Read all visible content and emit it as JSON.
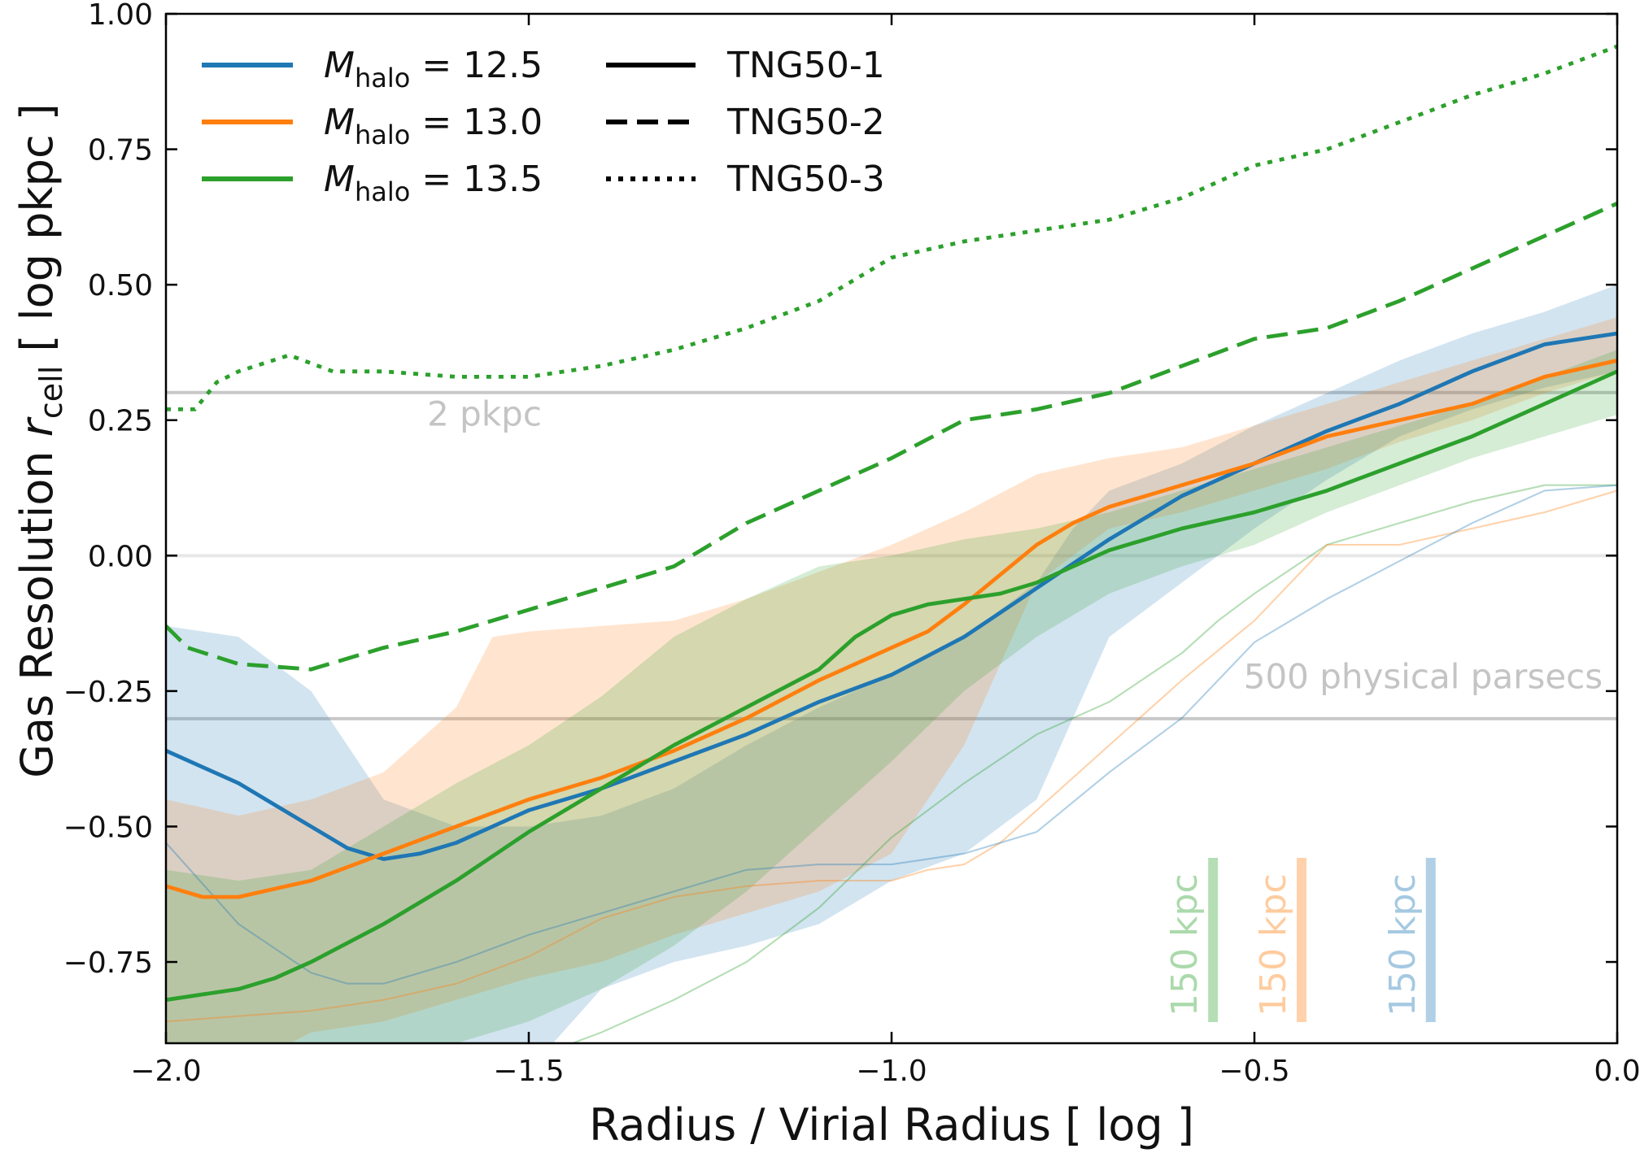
{
  "chart_data": {
    "type": "line",
    "xlabel": "Radius / Virial Radius [ log ]",
    "ylabel_parts": {
      "pre": "Gas Resolution ",
      "var": "r",
      "sub": "cell",
      "post": " [ log pkpc ]"
    },
    "xlim": [
      -2.0,
      0.0
    ],
    "ylim": [
      -0.9,
      1.0
    ],
    "xticks": [
      -2.0,
      -1.5,
      -1.0,
      -0.5,
      0.0
    ],
    "xtick_labels": [
      "−2.0",
      "−1.5",
      "−1.0",
      "−0.5",
      "0.0"
    ],
    "yticks": [
      -0.75,
      -0.5,
      -0.25,
      0.0,
      0.25,
      0.5,
      0.75,
      1.0
    ],
    "ytick_labels": [
      "−0.75",
      "−0.50",
      "−0.25",
      "0.00",
      "0.25",
      "0.50",
      "0.75",
      "1.00"
    ],
    "grid": false,
    "legend_mass": [
      {
        "var": "M",
        "sub": "halo",
        "text": " = 12.5",
        "color": "#1f77b4"
      },
      {
        "var": "M",
        "sub": "halo",
        "text": " = 13.0",
        "color": "#ff7f0e"
      },
      {
        "var": "M",
        "sub": "halo",
        "text": " = 13.5",
        "color": "#2ca02c"
      }
    ],
    "legend_style": [
      {
        "label": "TNG50-1",
        "dash": "solid"
      },
      {
        "label": "TNG50-2",
        "dash": "dashed"
      },
      {
        "label": "TNG50-3",
        "dash": "dotted"
      }
    ],
    "legend_position": "top-left",
    "reference_lines": [
      {
        "y": 0.301,
        "label": "2 pkpc",
        "label_x": -1.64,
        "label_y": 0.24,
        "anchor": "start",
        "color": "#c8c8c8"
      },
      {
        "y": 0.0,
        "label": "",
        "color": "#e8e8e8"
      },
      {
        "y": -0.301,
        "label": "500 physical parsecs",
        "label_x": -0.02,
        "label_y": -0.245,
        "anchor": "end",
        "color": "#c8c8c8"
      }
    ],
    "scale_bars": [
      {
        "label": "150 kpc",
        "x": -0.557,
        "color": "#2ca02c"
      },
      {
        "label": "150 kpc",
        "x": -0.435,
        "color": "#ff7f0e"
      },
      {
        "label": "150 kpc",
        "x": -0.257,
        "color": "#1f77b4"
      }
    ],
    "bands": [
      {
        "color": "#1f77b4",
        "opacity": 0.2,
        "x": [
          -2.0,
          -1.9,
          -1.8,
          -1.7,
          -1.6,
          -1.5,
          -1.4,
          -1.3,
          -1.2,
          -1.1,
          -1.0,
          -0.9,
          -0.8,
          -0.75,
          -0.7,
          -0.6,
          -0.5,
          -0.4,
          -0.3,
          -0.2,
          -0.1,
          0.0
        ],
        "upper": [
          -0.13,
          -0.15,
          -0.25,
          -0.45,
          -0.5,
          -0.5,
          -0.48,
          -0.43,
          -0.35,
          -0.28,
          -0.22,
          -0.15,
          -0.05,
          0.05,
          0.12,
          0.17,
          0.24,
          0.3,
          0.36,
          0.41,
          0.45,
          0.5
        ],
        "lower": [
          -0.95,
          -0.95,
          -0.95,
          -0.95,
          -0.95,
          -0.95,
          -0.8,
          -0.75,
          -0.72,
          -0.68,
          -0.6,
          -0.55,
          -0.45,
          -0.3,
          -0.15,
          -0.05,
          0.05,
          0.14,
          0.22,
          0.27,
          0.31,
          0.34
        ]
      },
      {
        "color": "#ff7f0e",
        "opacity": 0.2,
        "x": [
          -2.0,
          -1.9,
          -1.8,
          -1.7,
          -1.6,
          -1.55,
          -1.5,
          -1.4,
          -1.3,
          -1.2,
          -1.1,
          -1.0,
          -0.9,
          -0.8,
          -0.7,
          -0.6,
          -0.5,
          -0.4,
          -0.3,
          -0.2,
          -0.1,
          0.0
        ],
        "upper": [
          -0.45,
          -0.48,
          -0.45,
          -0.4,
          -0.28,
          -0.15,
          -0.14,
          -0.13,
          -0.12,
          -0.08,
          -0.03,
          0.02,
          0.08,
          0.15,
          0.18,
          0.2,
          0.24,
          0.28,
          0.32,
          0.36,
          0.4,
          0.44
        ],
        "lower": [
          -0.95,
          -0.95,
          -0.88,
          -0.86,
          -0.82,
          -0.8,
          -0.78,
          -0.75,
          -0.7,
          -0.66,
          -0.62,
          -0.55,
          -0.35,
          -0.05,
          0.05,
          0.08,
          0.12,
          0.16,
          0.21,
          0.25,
          0.3,
          0.34
        ]
      },
      {
        "color": "#2ca02c",
        "opacity": 0.2,
        "x": [
          -2.0,
          -1.9,
          -1.8,
          -1.7,
          -1.6,
          -1.5,
          -1.4,
          -1.3,
          -1.2,
          -1.1,
          -1.0,
          -0.9,
          -0.8,
          -0.7,
          -0.6,
          -0.5,
          -0.4,
          -0.3,
          -0.2,
          -0.1,
          0.0
        ],
        "upper": [
          -0.58,
          -0.6,
          -0.58,
          -0.5,
          -0.42,
          -0.35,
          -0.26,
          -0.15,
          -0.08,
          -0.02,
          0.0,
          0.03,
          0.05,
          0.08,
          0.12,
          0.16,
          0.2,
          0.24,
          0.28,
          0.33,
          0.38
        ],
        "lower": [
          -0.95,
          -0.95,
          -0.95,
          -0.93,
          -0.9,
          -0.86,
          -0.8,
          -0.72,
          -0.62,
          -0.5,
          -0.38,
          -0.25,
          -0.15,
          -0.07,
          -0.02,
          0.02,
          0.08,
          0.13,
          0.18,
          0.22,
          0.26
        ]
      }
    ],
    "series": [
      {
        "color": "#2ca02c",
        "dash": "solid",
        "width": 1.4,
        "opacity": 0.35,
        "x": [
          -1.56,
          -1.5,
          -1.4,
          -1.3,
          -1.2,
          -1.1,
          -1.0,
          -0.9,
          -0.8,
          -0.7,
          -0.6,
          -0.55,
          -0.5,
          -0.4,
          -0.3,
          -0.2,
          -0.1,
          0.0
        ],
        "y": [
          -0.95,
          -0.93,
          -0.88,
          -0.82,
          -0.75,
          -0.65,
          -0.52,
          -0.42,
          -0.33,
          -0.27,
          -0.18,
          -0.12,
          -0.07,
          0.02,
          0.06,
          0.1,
          0.13,
          0.13
        ]
      },
      {
        "color": "#ff7f0e",
        "dash": "solid",
        "width": 1.4,
        "opacity": 0.35,
        "x": [
          -2.0,
          -1.9,
          -1.8,
          -1.7,
          -1.6,
          -1.5,
          -1.4,
          -1.3,
          -1.2,
          -1.1,
          -1.0,
          -0.95,
          -0.9,
          -0.85,
          -0.8,
          -0.7,
          -0.6,
          -0.5,
          -0.45,
          -0.4,
          -0.3,
          -0.2,
          -0.1,
          0.0
        ],
        "y": [
          -0.86,
          -0.85,
          -0.84,
          -0.82,
          -0.79,
          -0.74,
          -0.67,
          -0.63,
          -0.61,
          -0.6,
          -0.6,
          -0.58,
          -0.57,
          -0.53,
          -0.47,
          -0.35,
          -0.23,
          -0.12,
          -0.05,
          0.02,
          0.02,
          0.05,
          0.08,
          0.12
        ]
      },
      {
        "color": "#1f77b4",
        "dash": "solid",
        "width": 1.4,
        "opacity": 0.35,
        "x": [
          -2.0,
          -1.9,
          -1.8,
          -1.75,
          -1.7,
          -1.6,
          -1.5,
          -1.4,
          -1.3,
          -1.2,
          -1.1,
          -1.0,
          -0.9,
          -0.8,
          -0.7,
          -0.6,
          -0.5,
          -0.4,
          -0.3,
          -0.2,
          -0.1,
          0.0
        ],
        "y": [
          -0.53,
          -0.68,
          -0.77,
          -0.79,
          -0.79,
          -0.75,
          -0.7,
          -0.66,
          -0.62,
          -0.58,
          -0.57,
          -0.57,
          -0.55,
          -0.51,
          -0.4,
          -0.3,
          -0.16,
          -0.08,
          -0.01,
          0.06,
          0.12,
          0.13
        ]
      },
      {
        "color": "#2ca02c",
        "dash": "dotted",
        "width": 3.2,
        "opacity": 1,
        "x": [
          -2.0,
          -1.96,
          -1.93,
          -1.9,
          -1.83,
          -1.77,
          -1.7,
          -1.6,
          -1.5,
          -1.4,
          -1.3,
          -1.2,
          -1.1,
          -1.0,
          -0.9,
          -0.8,
          -0.7,
          -0.6,
          -0.5,
          -0.4,
          -0.3,
          -0.2,
          -0.1,
          0.0
        ],
        "y": [
          0.27,
          0.27,
          0.32,
          0.34,
          0.37,
          0.34,
          0.34,
          0.33,
          0.33,
          0.35,
          0.38,
          0.42,
          0.47,
          0.55,
          0.58,
          0.6,
          0.62,
          0.66,
          0.72,
          0.75,
          0.8,
          0.85,
          0.89,
          0.94
        ]
      },
      {
        "color": "#2ca02c",
        "dash": "dashed",
        "width": 3.2,
        "opacity": 1,
        "x": [
          -2.0,
          -1.97,
          -1.9,
          -1.8,
          -1.7,
          -1.6,
          -1.5,
          -1.4,
          -1.3,
          -1.2,
          -1.1,
          -1.0,
          -0.9,
          -0.8,
          -0.7,
          -0.6,
          -0.5,
          -0.4,
          -0.3,
          -0.2,
          -0.1,
          0.0
        ],
        "y": [
          -0.13,
          -0.17,
          -0.2,
          -0.21,
          -0.17,
          -0.14,
          -0.1,
          -0.06,
          -0.02,
          0.06,
          0.12,
          0.18,
          0.25,
          0.27,
          0.3,
          0.35,
          0.4,
          0.42,
          0.47,
          0.53,
          0.59,
          0.65
        ]
      },
      {
        "color": "#1f77b4",
        "dash": "solid",
        "width": 3.2,
        "opacity": 1,
        "x": [
          -2.0,
          -1.9,
          -1.8,
          -1.75,
          -1.7,
          -1.65,
          -1.6,
          -1.5,
          -1.4,
          -1.3,
          -1.2,
          -1.1,
          -1.0,
          -0.9,
          -0.8,
          -0.7,
          -0.6,
          -0.5,
          -0.4,
          -0.3,
          -0.2,
          -0.1,
          0.0
        ],
        "y": [
          -0.36,
          -0.42,
          -0.5,
          -0.54,
          -0.56,
          -0.55,
          -0.53,
          -0.47,
          -0.43,
          -0.38,
          -0.33,
          -0.27,
          -0.22,
          -0.15,
          -0.06,
          0.03,
          0.11,
          0.17,
          0.23,
          0.28,
          0.34,
          0.39,
          0.41
        ]
      },
      {
        "color": "#ff7f0e",
        "dash": "solid",
        "width": 3.2,
        "opacity": 1,
        "x": [
          -2.0,
          -1.95,
          -1.9,
          -1.8,
          -1.7,
          -1.6,
          -1.5,
          -1.4,
          -1.3,
          -1.2,
          -1.1,
          -1.0,
          -0.95,
          -0.9,
          -0.8,
          -0.75,
          -0.7,
          -0.6,
          -0.5,
          -0.4,
          -0.3,
          -0.2,
          -0.1,
          0.0
        ],
        "y": [
          -0.61,
          -0.63,
          -0.63,
          -0.6,
          -0.55,
          -0.5,
          -0.45,
          -0.41,
          -0.36,
          -0.3,
          -0.23,
          -0.17,
          -0.14,
          -0.09,
          0.02,
          0.06,
          0.09,
          0.13,
          0.17,
          0.22,
          0.25,
          0.28,
          0.33,
          0.36
        ]
      },
      {
        "color": "#2ca02c",
        "dash": "solid",
        "width": 3.2,
        "opacity": 1,
        "x": [
          -2.0,
          -1.9,
          -1.85,
          -1.8,
          -1.7,
          -1.6,
          -1.5,
          -1.4,
          -1.3,
          -1.2,
          -1.1,
          -1.05,
          -1.0,
          -0.95,
          -0.9,
          -0.85,
          -0.8,
          -0.7,
          -0.6,
          -0.5,
          -0.4,
          -0.3,
          -0.2,
          -0.1,
          0.0
        ],
        "y": [
          -0.82,
          -0.8,
          -0.78,
          -0.75,
          -0.68,
          -0.6,
          -0.51,
          -0.43,
          -0.35,
          -0.28,
          -0.21,
          -0.15,
          -0.11,
          -0.09,
          -0.08,
          -0.07,
          -0.05,
          0.01,
          0.05,
          0.08,
          0.12,
          0.17,
          0.22,
          0.28,
          0.34
        ]
      }
    ]
  }
}
